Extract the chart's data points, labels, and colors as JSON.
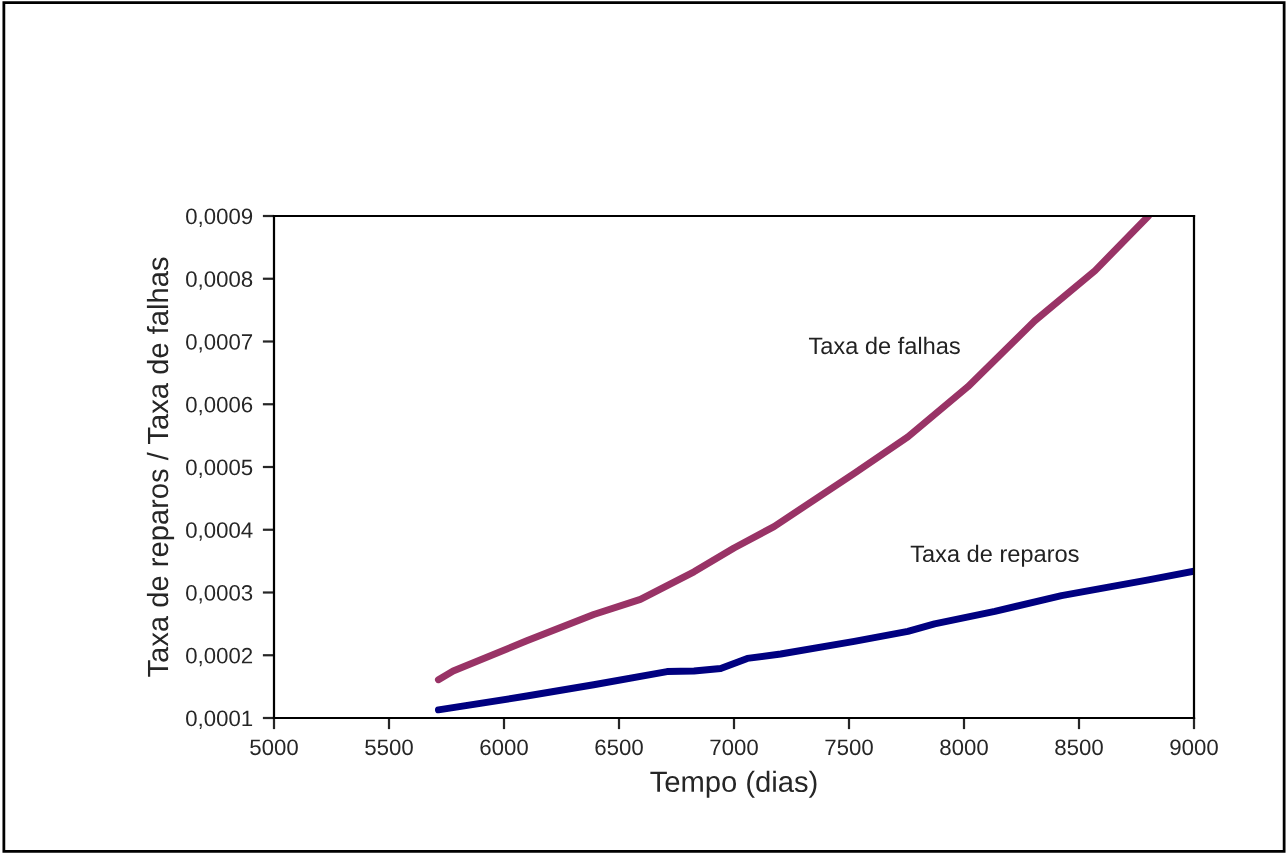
{
  "chart_data": {
    "type": "line",
    "xlabel": "Tempo (dias)",
    "ylabel": "Taxa de reparos / Taxa de falhas",
    "xlim": [
      5000,
      9000
    ],
    "xticks": [
      5000,
      5500,
      6000,
      6500,
      7000,
      7500,
      8000,
      8500,
      9000
    ],
    "ylim": [
      0.0001,
      0.0009
    ],
    "yticks": [
      {
        "value": 0.0001,
        "label": "0,0001"
      },
      {
        "value": 0.0002,
        "label": "0,0002"
      },
      {
        "value": 0.0003,
        "label": "0,0003"
      },
      {
        "value": 0.0004,
        "label": "0,0004"
      },
      {
        "value": 0.0005,
        "label": "0,0005"
      },
      {
        "value": 0.0006,
        "label": "0,0006"
      },
      {
        "value": 0.0007,
        "label": "0,0007"
      },
      {
        "value": 0.0008,
        "label": "0,0008"
      },
      {
        "value": 0.0009,
        "label": "0,0009"
      }
    ],
    "grid": false,
    "line_style": "solid",
    "series": [
      {
        "name": "Taxa de falhas",
        "color": "#993366",
        "x": [
          5715,
          5779,
          6099,
          6390,
          6593,
          6826,
          7000,
          7174,
          7523,
          7756,
          8017,
          8308,
          8570,
          8802
        ],
        "values": [
          0.000161,
          0.000175,
          0.000223,
          0.000265,
          0.000289,
          0.000333,
          0.000371,
          0.000405,
          0.00049,
          0.000548,
          0.000628,
          0.000733,
          0.000813,
          0.0009
        ]
      },
      {
        "name": "Taxa de reparos",
        "color": "#000080",
        "x": [
          5715,
          6099,
          6390,
          6709,
          6826,
          6942,
          7058,
          7203,
          7523,
          7756,
          7872,
          8134,
          8424,
          8802,
          9000
        ],
        "values": [
          0.000113,
          0.000135,
          0.000153,
          0.000174,
          0.000175,
          0.000179,
          0.000195,
          0.000202,
          0.000222,
          0.000238,
          0.00025,
          0.00027,
          0.000295,
          0.00032,
          0.000334
        ]
      }
    ]
  }
}
